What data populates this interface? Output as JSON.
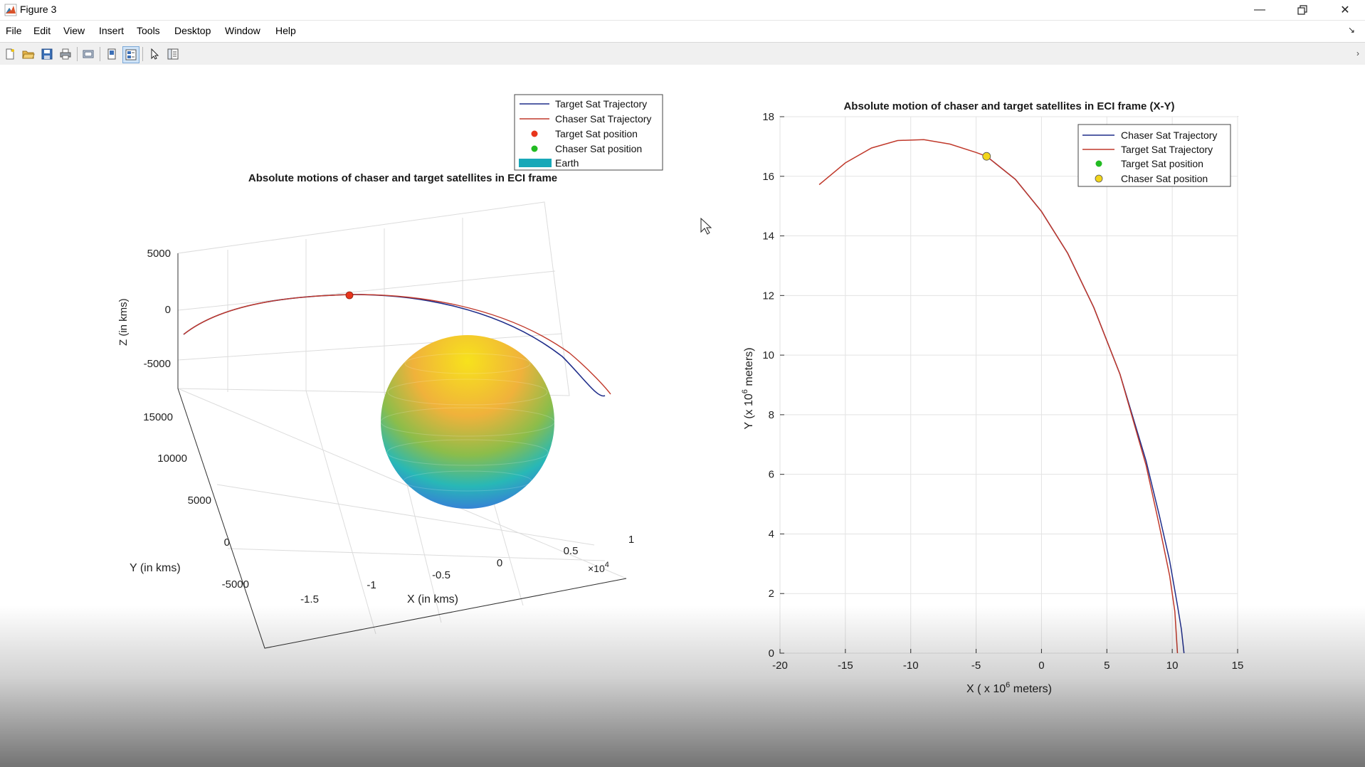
{
  "window": {
    "title": "Figure 3",
    "controls": {
      "minimize_icon": "minimize-icon",
      "restore_icon": "restore-icon",
      "close_icon": "close-icon"
    }
  },
  "menu": {
    "items": [
      "File",
      "Edit",
      "View",
      "Insert",
      "Tools",
      "Desktop",
      "Window",
      "Help"
    ]
  },
  "toolbar": {
    "icons": [
      "new-figure-icon",
      "open-file-icon",
      "save-icon",
      "print-icon",
      "print-preview-icon",
      "hide-plot-tools-icon",
      "show-plot-tools-icon",
      "edit-plot-arrow-icon",
      "property-inspector-icon"
    ]
  },
  "colors": {
    "blue_series": "#1f2d8a",
    "red_series": "#c0392b",
    "target_marker": "#e8351c",
    "chaser_marker_green": "#22bb22",
    "chaser_marker_yellow": "#f2d51a",
    "earth_patch": "#18a8b8"
  },
  "chart_data": [
    {
      "type": "line",
      "title": "Absolute motions of chaser and target satellites in ECI frame",
      "view": "3d",
      "xlabel": "X (in kms)",
      "ylabel": "Y (in kms)",
      "zlabel": "Z (in kms)",
      "x_ticks": [
        "-1.5",
        "-1",
        "-0.5",
        "0",
        "0.5",
        "1"
      ],
      "x_exponent_base": "×10",
      "x_exponent_power": "4",
      "y_ticks": [
        "-5000",
        "0",
        "5000",
        "10000",
        "15000"
      ],
      "z_ticks": [
        "5000",
        "0",
        "-5000"
      ],
      "grid": true,
      "legend_placement": "top-right",
      "legend": [
        "Target Sat Trajectory",
        "Chaser Sat Trajectory",
        "Target Sat position",
        "Chaser Sat position",
        "Earth"
      ],
      "series": [
        {
          "name": "Target Sat Trajectory",
          "color": "#1f2d8a"
        },
        {
          "name": "Chaser Sat Trajectory",
          "color": "#c0392b"
        }
      ],
      "markers": [
        {
          "name": "Target Sat position",
          "color": "#e8351c"
        }
      ],
      "surface": {
        "name": "Earth",
        "colormap": "parula"
      }
    },
    {
      "type": "line",
      "title": "Absolute motion of chaser and target satellites in ECI frame (X-Y)",
      "xlabel_prefix": "X ( x 10",
      "xlabel_exp": "6",
      "xlabel_suffix": " meters)",
      "ylabel_prefix": "Y (x 10",
      "ylabel_exp": "6",
      "ylabel_suffix": " meters)",
      "xlim": [
        -20,
        15
      ],
      "ylim": [
        0,
        18
      ],
      "x_ticks": [
        -20,
        -15,
        -10,
        -5,
        0,
        5,
        10,
        15
      ],
      "y_ticks": [
        0,
        2,
        4,
        6,
        8,
        10,
        12,
        14,
        16,
        18
      ],
      "grid": true,
      "legend_placement": "top-right",
      "legend": [
        "Chaser Sat Trajectory",
        "Target Sat Trajectory",
        "Target Sat position",
        "Chaser Sat position"
      ],
      "series": [
        {
          "name": "Chaser Sat Trajectory",
          "color": "#1f2d8a",
          "points": [
            [
              -4.2,
              16.67
            ],
            [
              -2,
              15.9
            ],
            [
              0,
              14.82
            ],
            [
              2,
              13.42
            ],
            [
              4,
              11.6
            ],
            [
              6,
              9.36
            ],
            [
              8,
              6.45
            ],
            [
              9,
              4.64
            ],
            [
              9.8,
              3.1
            ],
            [
              10.4,
              1.6
            ],
            [
              10.7,
              0.8
            ],
            [
              10.9,
              0
            ]
          ]
        },
        {
          "name": "Target Sat Trajectory",
          "color": "#c0392b",
          "points": [
            [
              -17,
              15.72
            ],
            [
              -15,
              16.45
            ],
            [
              -13,
              16.95
            ],
            [
              -11,
              17.2
            ],
            [
              -9,
              17.23
            ],
            [
              -7,
              17.08
            ],
            [
              -5,
              16.8
            ],
            [
              -4.2,
              16.67
            ],
            [
              -2,
              15.9
            ],
            [
              0,
              14.82
            ],
            [
              2,
              13.42
            ],
            [
              4,
              11.6
            ],
            [
              6,
              9.36
            ],
            [
              8,
              6.3
            ],
            [
              9,
              4.3
            ],
            [
              9.8,
              2.6
            ],
            [
              10.2,
              1.4
            ],
            [
              10.4,
              0
            ]
          ]
        }
      ],
      "markers": [
        {
          "name": "Chaser Sat position",
          "x": -4.2,
          "y": 16.67,
          "color": "#f2d51a"
        }
      ]
    }
  ]
}
